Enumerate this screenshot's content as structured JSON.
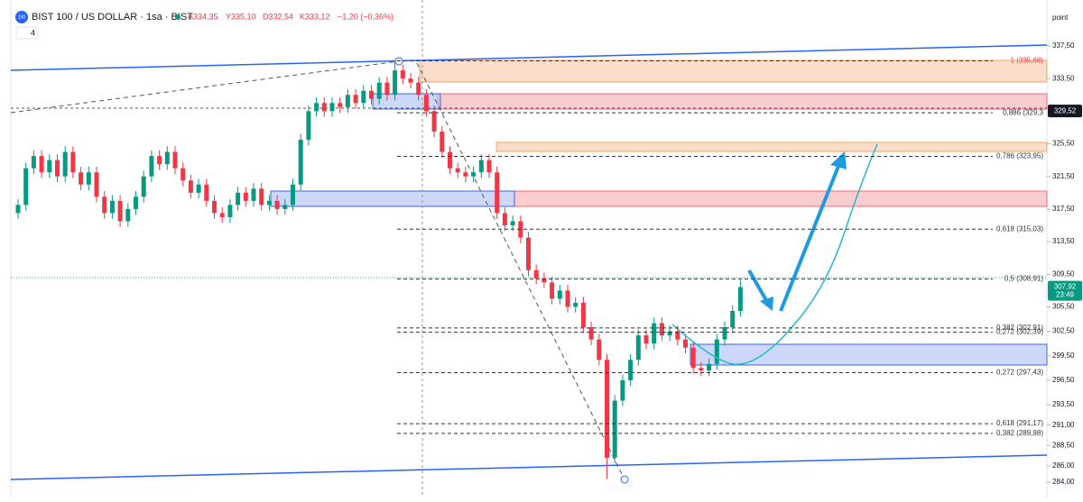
{
  "header": {
    "icon": "100",
    "symbol": "BIST 100 / US DOLLAR · 1sa · BIST",
    "open": "A334,35",
    "high": "Y335,10",
    "low": "D332,54",
    "close": "K333,12",
    "change": "−1,20 (−0,36%)",
    "indicator_count": "4",
    "axis_unit": "point"
  },
  "chart_data": {
    "type": "candlestick",
    "up_color": "#089981",
    "down_color": "#f23645",
    "open": [
      317,
      318,
      322.5,
      324,
      322,
      323.5,
      321.5,
      324.5,
      322,
      320.5,
      322,
      319,
      317,
      318.5,
      316,
      317.5,
      319,
      321.5,
      324,
      323,
      324.5,
      322.5,
      321,
      319.5,
      320.5,
      318.5,
      317,
      316.5,
      318,
      319.5,
      318.5,
      320,
      318,
      318.5,
      317.5,
      318,
      320.5,
      326,
      329.5,
      330.5,
      329.5,
      330.5,
      330,
      331.5,
      330.5,
      332,
      331,
      333,
      331.5,
      334.5,
      333.5,
      333,
      331.5,
      329.5,
      327,
      324.5,
      322.5,
      322,
      321.5,
      322,
      323.5,
      322,
      317,
      315.5,
      316,
      314,
      310,
      309,
      308.5,
      306.5,
      307.5,
      305.5,
      306,
      303,
      301.5,
      299,
      287,
      294,
      296.5,
      299,
      302,
      301,
      303.5,
      302,
      302.5,
      301.5,
      300.5,
      298,
      297.7,
      298.5,
      301.5,
      303,
      305
    ],
    "high": [
      318.7,
      323.2,
      324.7,
      324.7,
      324.2,
      324.2,
      325.2,
      325.2,
      322.7,
      322.7,
      322.7,
      319.7,
      319.2,
      319.2,
      318.2,
      319.7,
      322.2,
      324.7,
      324.7,
      325.2,
      325.2,
      323.2,
      321.7,
      321.2,
      321.2,
      319.2,
      317.7,
      318.7,
      320.2,
      320.2,
      320.7,
      320.7,
      319.2,
      319.2,
      318.7,
      321.2,
      326.7,
      330.2,
      331.2,
      331.2,
      331.2,
      331.2,
      332.2,
      332.2,
      332.7,
      332.7,
      333.7,
      333.7,
      335.68,
      335.2,
      334.2,
      333.7,
      332.2,
      330.2,
      327.7,
      325.2,
      323.2,
      322.7,
      322.7,
      324.2,
      324.2,
      322.7,
      317.7,
      316.7,
      316.7,
      314.7,
      310.7,
      309.7,
      309.2,
      308.2,
      308.2,
      306.7,
      306.7,
      303.7,
      302.2,
      299.7,
      294.7,
      297.2,
      299.7,
      302.7,
      302.7,
      304.2,
      304.2,
      303.2,
      303.2,
      302.2,
      301.2,
      298.7,
      299.2,
      302.2,
      303.7,
      305.7,
      308.8
    ],
    "low": [
      316.3,
      317.3,
      321.8,
      321.3,
      321.3,
      320.8,
      320.8,
      321.3,
      319.8,
      319.8,
      318.3,
      316.3,
      316.3,
      315.3,
      315.3,
      316.8,
      318.3,
      320.8,
      322.3,
      322.3,
      321.8,
      320.3,
      318.8,
      318.8,
      317.8,
      316.3,
      315.8,
      315.8,
      317.3,
      317.8,
      317.8,
      317.3,
      317.3,
      316.8,
      316.8,
      317.3,
      319.8,
      325.3,
      328.8,
      328.8,
      328.8,
      329.3,
      329.3,
      329.8,
      329.8,
      330.3,
      330.3,
      330.8,
      330.8,
      332.8,
      332.3,
      330.8,
      328.8,
      326.3,
      323.8,
      321.8,
      321.3,
      320.8,
      320.8,
      321.3,
      321.3,
      316.3,
      314.8,
      314.8,
      313.3,
      309.3,
      308.3,
      307.8,
      305.8,
      305.8,
      304.8,
      304.8,
      302.3,
      300.8,
      298.3,
      284.4,
      286.3,
      293.3,
      295.8,
      298.3,
      300.3,
      300.3,
      301.3,
      301.3,
      300.8,
      299.8,
      297.3,
      297,
      297,
      297.8,
      300.8,
      302.3,
      304.3
    ],
    "close": [
      318,
      322.5,
      324,
      322,
      323.5,
      321.5,
      324.5,
      322,
      320.5,
      322,
      319,
      317,
      318.5,
      316,
      317.5,
      319,
      321.5,
      324,
      323,
      324.5,
      322.5,
      321,
      319.5,
      320.5,
      318.5,
      317,
      316.5,
      318,
      319.5,
      318.5,
      320,
      318,
      318.5,
      317.5,
      318,
      320.5,
      326,
      329.5,
      330.5,
      329.5,
      330.5,
      330,
      331.5,
      330.5,
      332,
      331,
      333,
      331.5,
      334.5,
      333.5,
      333,
      331.5,
      329.5,
      327,
      324.5,
      322.5,
      322,
      321.5,
      322,
      323.5,
      322,
      317,
      315.5,
      316,
      314,
      310,
      309,
      308.5,
      306.5,
      307.5,
      305.5,
      306,
      303,
      301.5,
      299,
      287,
      294,
      296.5,
      299,
      302,
      301,
      303.5,
      302,
      302.5,
      301.5,
      300.5,
      298,
      297.7,
      298.5,
      301.5,
      303,
      305,
      307.92
    ],
    "ylim": [
      282.56,
      342.03
    ],
    "yticks": [
      {
        "value": 337.5,
        "label": "337,50"
      },
      {
        "value": 333.5,
        "label": "333,50"
      },
      {
        "value": 325.5,
        "label": "325,50"
      },
      {
        "value": 321.5,
        "label": "321,50"
      },
      {
        "value": 317.5,
        "label": "317,50"
      },
      {
        "value": 313.5,
        "label": "313,50"
      },
      {
        "value": 309.5,
        "label": "309,50"
      },
      {
        "value": 305.5,
        "label": "305,50"
      },
      {
        "value": 302.5,
        "label": "302,50"
      },
      {
        "value": 299.5,
        "label": "299,50"
      },
      {
        "value": 296.5,
        "label": "296,50"
      },
      {
        "value": 293.5,
        "label": "293,50"
      },
      {
        "value": 291,
        "label": "291,00"
      },
      {
        "value": 288.5,
        "label": "288,50"
      },
      {
        "value": 286,
        "label": "286,00"
      },
      {
        "value": 284,
        "label": "284,00"
      }
    ],
    "levels": [
      {
        "value": 335.68,
        "label": "1 (335,68)"
      },
      {
        "value": 329.3,
        "label": "0,886 (329,3"
      },
      {
        "value": 323.95,
        "label": "0,786 (323,95)"
      },
      {
        "value": 315.03,
        "label": "0,618 (315,03)"
      },
      {
        "value": 308.91,
        "label": "0,5 (308,91)"
      },
      {
        "value": 302.91,
        "label": "0,382 (302,91)"
      },
      {
        "value": 302.39,
        "label": "0,272 (302,39)"
      },
      {
        "value": 297.43,
        "label": "0,272 (297,43)"
      },
      {
        "value": 291.17,
        "label": "0,618 (291,17)"
      },
      {
        "value": 289.98,
        "label": "0,382 (289,98)"
      }
    ],
    "price_labels": [
      {
        "value": 329.52,
        "label": "329,52"
      },
      {
        "value": 307.92,
        "label": "307,92",
        "time": "23:49"
      }
    ]
  }
}
